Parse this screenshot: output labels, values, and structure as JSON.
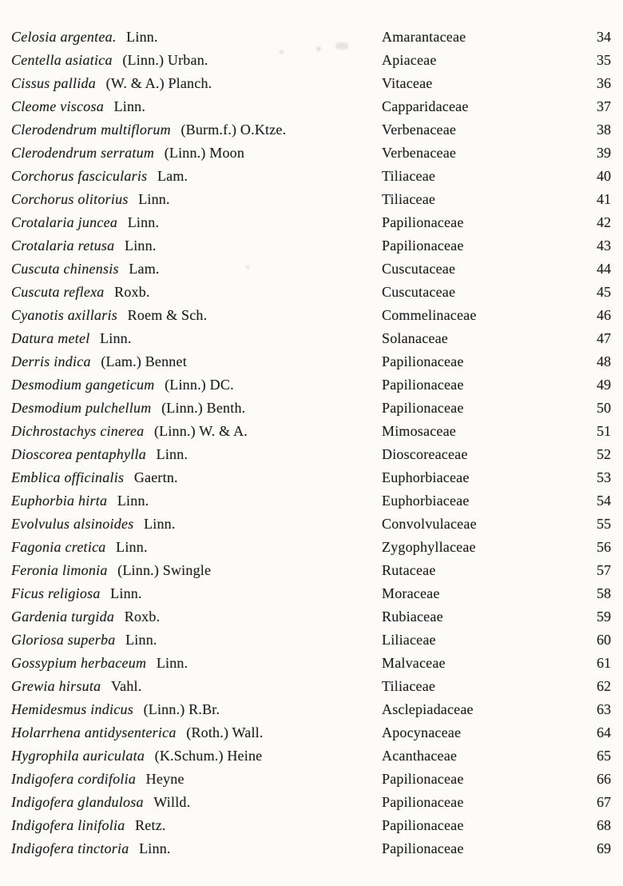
{
  "page": {
    "background": "#fcfbf8",
    "text_color": "#222120"
  },
  "index": {
    "rows": [
      {
        "species": "Celosia argentea.",
        "author": "Linn.",
        "family": "Amarantaceae",
        "page": "34"
      },
      {
        "species": "Centella asiatica",
        "author": "(Linn.) Urban.",
        "family": "Apiaceae",
        "page": "35"
      },
      {
        "species": "Cissus pallida",
        "author": "(W. & A.) Planch.",
        "family": "Vitaceae",
        "page": "36"
      },
      {
        "species": "Cleome viscosa",
        "author": "Linn.",
        "family": "Capparidaceae",
        "page": "37"
      },
      {
        "species": "Clerodendrum multiflorum",
        "author": "(Burm.f.) O.Ktze.",
        "family": "Verbenaceae",
        "page": "38"
      },
      {
        "species": "Clerodendrum serratum",
        "author": "(Linn.) Moon",
        "family": "Verbenaceae",
        "page": "39"
      },
      {
        "species": "Corchorus fascicularis",
        "author": "Lam.",
        "family": "Tiliaceae",
        "page": "40"
      },
      {
        "species": "Corchorus olitorius",
        "author": "Linn.",
        "family": "Tiliaceae",
        "page": "41"
      },
      {
        "species": "Crotalaria juncea",
        "author": "Linn.",
        "family": "Papilionaceae",
        "page": "42"
      },
      {
        "species": "Crotalaria retusa",
        "author": "Linn.",
        "family": "Papilionaceae",
        "page": "43"
      },
      {
        "species": "Cuscuta chinensis",
        "author": "Lam.",
        "family": "Cuscutaceae",
        "page": "44"
      },
      {
        "species": "Cuscuta reflexa",
        "author": "Roxb.",
        "family": "Cuscutaceae",
        "page": "45"
      },
      {
        "species": "Cyanotis axillaris",
        "author": "Roem & Sch.",
        "family": "Commelinaceae",
        "page": "46"
      },
      {
        "species": "Datura metel",
        "author": "Linn.",
        "family": "Solanaceae",
        "page": "47"
      },
      {
        "species": "Derris indica",
        "author": "(Lam.) Bennet",
        "family": "Papilionaceae",
        "page": "48"
      },
      {
        "species": "Desmodium gangeticum",
        "author": "(Linn.) DC.",
        "family": "Papilionaceae",
        "page": "49"
      },
      {
        "species": "Desmodium pulchellum",
        "author": "(Linn.) Benth.",
        "family": "Papilionaceae",
        "page": "50"
      },
      {
        "species": "Dichrostachys cinerea",
        "author": "(Linn.) W. & A.",
        "family": "Mimosaceae",
        "page": "51"
      },
      {
        "species": "Dioscorea pentaphylla",
        "author": "Linn.",
        "family": "Dioscoreaceae",
        "page": "52"
      },
      {
        "species": "Emblica officinalis",
        "author": "Gaertn.",
        "family": "Euphorbiaceae",
        "page": "53"
      },
      {
        "species": "Euphorbia hirta",
        "author": "Linn.",
        "family": "Euphorbiaceae",
        "page": "54"
      },
      {
        "species": "Evolvulus alsinoides",
        "author": "Linn.",
        "family": "Convolvulaceae",
        "page": "55"
      },
      {
        "species": "Fagonia cretica",
        "author": "Linn.",
        "family": "Zygophyllaceae",
        "page": "56"
      },
      {
        "species": "Feronia limonia",
        "author": "(Linn.) Swingle",
        "family": "Rutaceae",
        "page": "57"
      },
      {
        "species": "Ficus religiosa",
        "author": "Linn.",
        "family": "Moraceae",
        "page": "58"
      },
      {
        "species": "Gardenia turgida",
        "author": "Roxb.",
        "family": "Rubiaceae",
        "page": "59"
      },
      {
        "species": "Gloriosa superba",
        "author": "Linn.",
        "family": "Liliaceae",
        "page": "60"
      },
      {
        "species": "Gossypium herbaceum",
        "author": "Linn.",
        "family": "Malvaceae",
        "page": "61"
      },
      {
        "species": "Grewia hirsuta",
        "author": "Vahl.",
        "family": "Tiliaceae",
        "page": "62"
      },
      {
        "species": "Hemidesmus indicus",
        "author": "(Linn.) R.Br.",
        "family": "Asclepiadaceae",
        "page": "63"
      },
      {
        "species": "Holarrhena antidysenterica",
        "author": "(Roth.) Wall.",
        "family": "Apocynaceae",
        "page": "64"
      },
      {
        "species": "Hygrophila auriculata",
        "author": "(K.Schum.) Heine",
        "family": "Acanthaceae",
        "page": "65"
      },
      {
        "species": "Indigofera cordifolia",
        "author": "Heyne",
        "family": "Papilionaceae",
        "page": "66"
      },
      {
        "species": "Indigofera glandulosa",
        "author": "Willd.",
        "family": "Papilionaceae",
        "page": "67"
      },
      {
        "species": "Indigofera linifolia",
        "author": "Retz.",
        "family": "Papilionaceae",
        "page": "68"
      },
      {
        "species": "Indigofera tinctoria",
        "author": "Linn.",
        "family": "Papilionaceae",
        "page": "69"
      }
    ]
  }
}
